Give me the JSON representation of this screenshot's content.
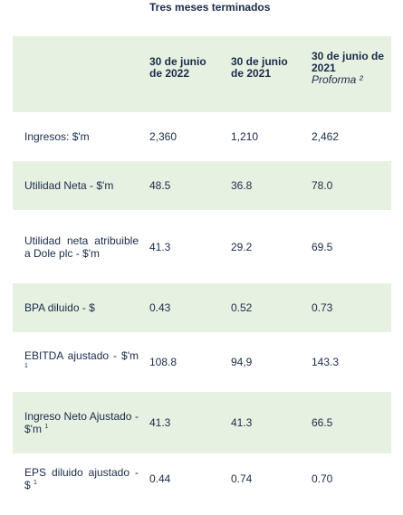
{
  "caption": "Tres meses terminados",
  "columns": [
    {
      "line1": "30 de junio",
      "line2": "de 2022",
      "sub": ""
    },
    {
      "line1": "30 de junio",
      "line2": "de 2021",
      "sub": ""
    },
    {
      "line1": "30 de junio de",
      "line2": "2021",
      "sub": "Proforma ²"
    }
  ],
  "rows": [
    {
      "label": "Ingresos: $'m",
      "sup": "",
      "values": [
        "2,360",
        "1,210",
        "2,462"
      ]
    },
    {
      "label": "Utilidad Neta - $'m",
      "sup": "",
      "values": [
        "48.5",
        "36.8",
        "78.0"
      ]
    },
    {
      "label": "Utilidad neta atribuible a Dole plc - $'m",
      "sup": "",
      "values": [
        "41.3",
        "29.2",
        "69.5"
      ]
    },
    {
      "label": "BPA diluido - $",
      "sup": "",
      "values": [
        "0.43",
        "0.52",
        "0.73"
      ]
    },
    {
      "label": "EBITDA ajustado - $'m",
      "sup": "1",
      "values": [
        "108.8",
        "94,9",
        "143.3"
      ]
    },
    {
      "label": "Ingreso Neto Ajustado - $'m",
      "sup": "1",
      "values": [
        "41.3",
        "41.3",
        "66.5"
      ]
    },
    {
      "label": "EPS diluido ajustado - $",
      "sup": "1",
      "values": [
        "0.44",
        "0.74",
        "0.70"
      ]
    }
  ]
}
